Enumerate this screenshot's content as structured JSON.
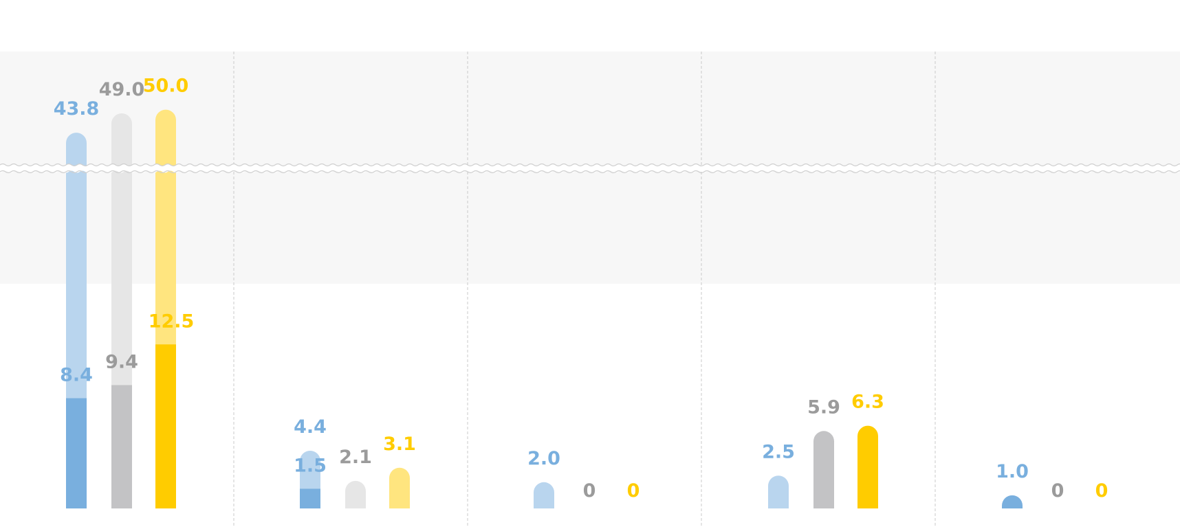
{
  "chart_data": {
    "type": "bar",
    "break_range": [
      14,
      34
    ],
    "colors": {
      "blue": "#79afde",
      "blue_light": "#b9d5ee",
      "gray": "#c3c3c5",
      "gray_light": "#e6e6e6",
      "yellow": "#ffcc00",
      "yellow_light": "#ffe57f",
      "label_blue": "#79afde",
      "label_gray": "#9b9b9b",
      "label_yellow": "#ffcc00",
      "break_band": "#f7f7f7",
      "divider": "#c8c8c8"
    },
    "groups": [
      {
        "bars": [
          {
            "color": "blue",
            "total": 43.8,
            "total_label": "43.8",
            "inner": 8.4,
            "inner_label": "8.4"
          },
          {
            "color": "gray",
            "total": 49.0,
            "total_label": "49.0",
            "inner": 9.4,
            "inner_label": "9.4"
          },
          {
            "color": "yellow",
            "total": 50.0,
            "total_label": "50.0",
            "inner": 12.5,
            "inner_label": "12.5"
          }
        ]
      },
      {
        "bars": [
          {
            "color": "blue",
            "total": 4.4,
            "total_label": "4.4",
            "inner": 1.5,
            "inner_label": "1.5"
          },
          {
            "color": "gray",
            "total": 2.1,
            "total_label": "2.1"
          },
          {
            "color": "yellow",
            "total": 3.1,
            "total_label": "3.1"
          }
        ]
      },
      {
        "bars": [
          {
            "color": "blue",
            "total": 2.0,
            "total_label": "2.0"
          },
          {
            "color": "gray",
            "total": 0,
            "total_label": "0"
          },
          {
            "color": "yellow",
            "total": 0,
            "total_label": "0"
          }
        ]
      },
      {
        "bars": [
          {
            "color": "blue",
            "total": 2.5,
            "total_label": "2.5"
          },
          {
            "color": "gray",
            "total": 5.9,
            "total_label": "5.9",
            "full": true
          },
          {
            "color": "yellow",
            "total": 6.3,
            "total_label": "6.3",
            "full": true
          }
        ]
      },
      {
        "bars": [
          {
            "color": "blue",
            "total": 1.0,
            "total_label": "1.0",
            "full": true
          },
          {
            "color": "gray",
            "total": 0,
            "total_label": "0"
          },
          {
            "color": "yellow",
            "total": 0,
            "total_label": "0"
          }
        ]
      }
    ]
  }
}
